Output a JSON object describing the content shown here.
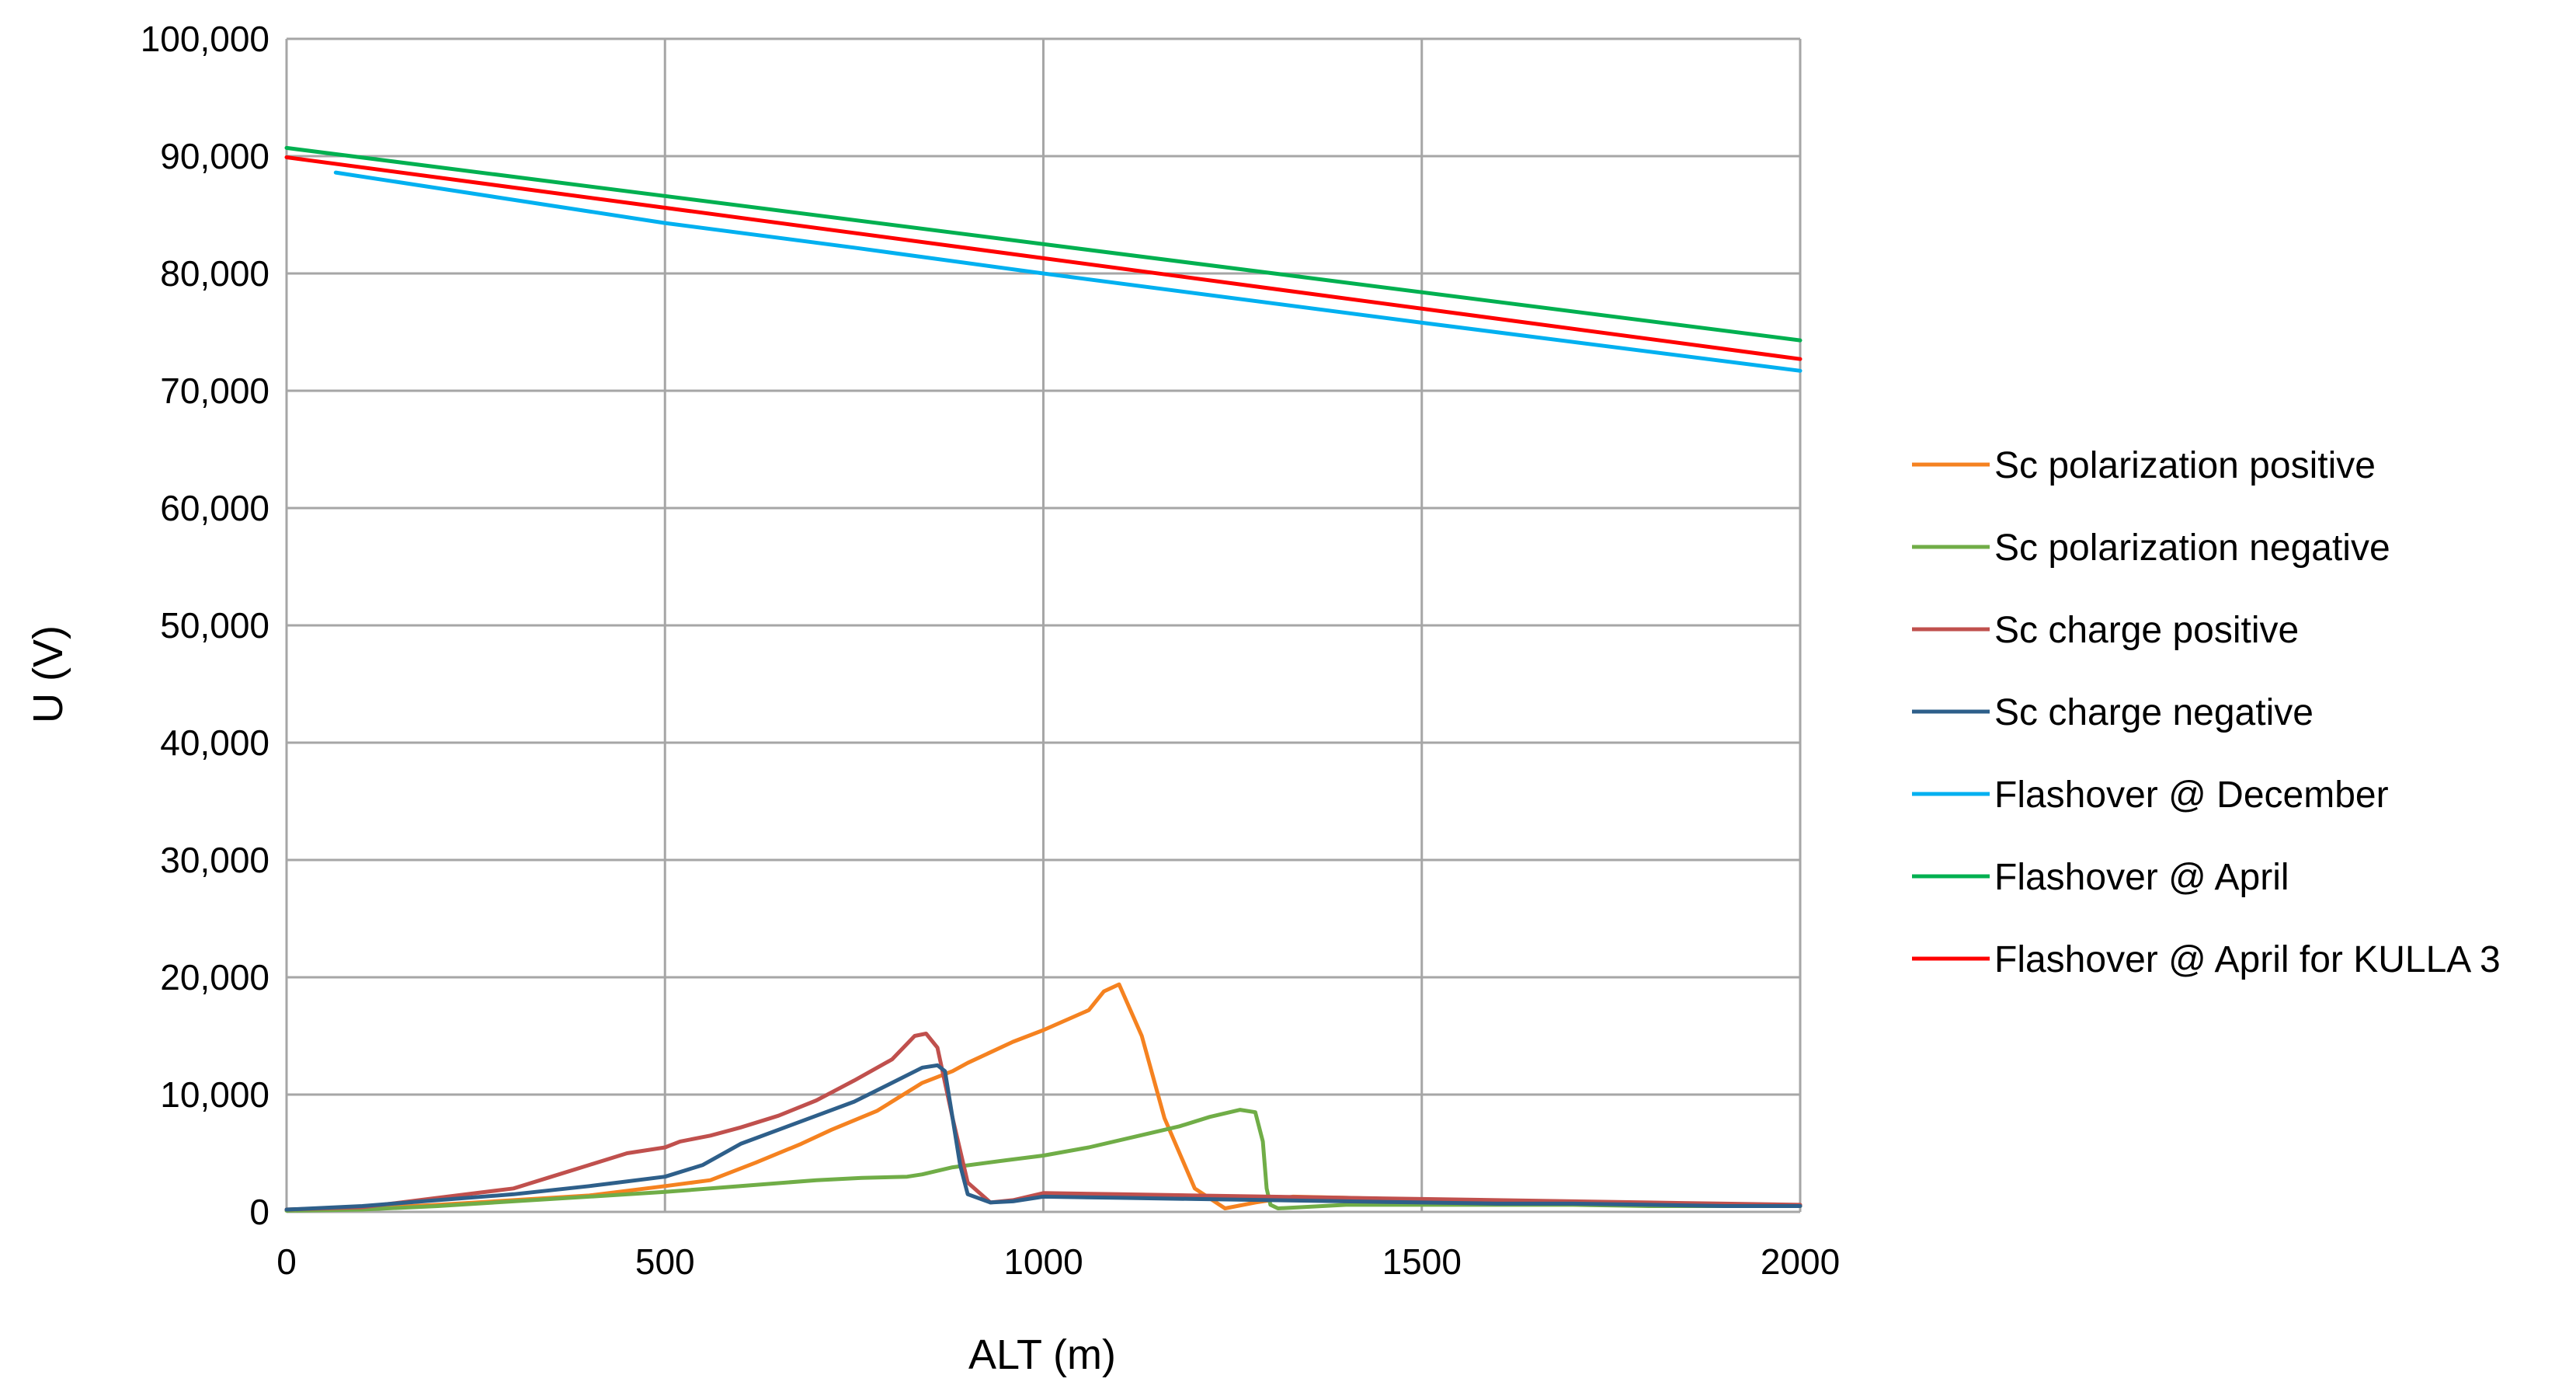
{
  "chart_data": {
    "type": "line",
    "title": "",
    "xlabel": "ALT (m)",
    "ylabel": "U (V)",
    "xlim": [
      0,
      2000
    ],
    "ylim": [
      0,
      100000
    ],
    "x_ticks": [
      0,
      500,
      1000,
      1500,
      2000
    ],
    "y_ticks": [
      0,
      10000,
      20000,
      30000,
      40000,
      50000,
      60000,
      70000,
      80000,
      90000,
      100000
    ],
    "x_tick_labels": [
      "0",
      "500",
      "1000",
      "1500",
      "2000"
    ],
    "y_tick_labels": [
      "0",
      "10,000",
      "20,000",
      "30,000",
      "40,000",
      "50,000",
      "60,000",
      "70,000",
      "80,000",
      "90,000",
      "100,000"
    ],
    "grid": true,
    "legend_position": "right",
    "series": [
      {
        "name": "Sc polarization positive",
        "color": "#f58220",
        "x": [
          0,
          100,
          200,
          300,
          400,
          500,
          560,
          620,
          680,
          720,
          780,
          840,
          880,
          900,
          960,
          1000,
          1060,
          1080,
          1100,
          1130,
          1160,
          1200,
          1240,
          1280,
          1330,
          1400,
          1500,
          1600,
          1700,
          1800,
          1900,
          2000
        ],
        "y": [
          200,
          300,
          600,
          1000,
          1400,
          2200,
          2700,
          4200,
          5800,
          7000,
          8600,
          11000,
          12000,
          12700,
          14500,
          15500,
          17200,
          18800,
          19400,
          15000,
          8000,
          2000,
          300,
          800,
          1300,
          1200,
          1000,
          900,
          800,
          700,
          600,
          500
        ]
      },
      {
        "name": "Sc polarization negative",
        "color": "#70ad47",
        "x": [
          0,
          100,
          200,
          300,
          400,
          500,
          600,
          700,
          760,
          820,
          840,
          880,
          950,
          1000,
          1060,
          1120,
          1180,
          1220,
          1260,
          1280,
          1290,
          1295,
          1300,
          1310,
          1340,
          1400,
          1500,
          1600,
          1700,
          1800,
          1900,
          2000
        ],
        "y": [
          100,
          200,
          500,
          900,
          1300,
          1700,
          2200,
          2700,
          2900,
          3000,
          3200,
          3800,
          4400,
          4800,
          5500,
          6400,
          7300,
          8100,
          8700,
          8500,
          6000,
          2000,
          600,
          300,
          400,
          600,
          600,
          600,
          600,
          500,
          500,
          500
        ]
      },
      {
        "name": "Sc charge positive",
        "color": "#c0504d",
        "x": [
          0,
          100,
          200,
          300,
          350,
          400,
          450,
          500,
          520,
          560,
          600,
          650,
          700,
          750,
          800,
          830,
          845,
          860,
          880,
          900,
          930,
          960,
          1000,
          1100,
          1200,
          1300,
          1400,
          1500,
          1600,
          1700,
          1800,
          1900,
          2000
        ],
        "y": [
          200,
          400,
          1200,
          2000,
          3000,
          4000,
          5000,
          5500,
          6000,
          6500,
          7200,
          8200,
          9500,
          11200,
          13000,
          15000,
          15200,
          14000,
          8000,
          2500,
          800,
          1000,
          1600,
          1500,
          1400,
          1300,
          1200,
          1100,
          1000,
          900,
          800,
          700,
          600
        ]
      },
      {
        "name": "Sc charge negative",
        "color": "#2e5f8a",
        "x": [
          0,
          100,
          200,
          300,
          400,
          500,
          550,
          600,
          650,
          700,
          750,
          800,
          840,
          860,
          870,
          880,
          890,
          900,
          930,
          960,
          1000,
          1100,
          1200,
          1300,
          1400,
          1500,
          1600,
          1700,
          1800,
          1900,
          2000
        ],
        "y": [
          200,
          500,
          1000,
          1500,
          2200,
          3000,
          4000,
          5800,
          7000,
          8200,
          9400,
          11000,
          12300,
          12500,
          12000,
          8000,
          4000,
          1500,
          800,
          900,
          1300,
          1200,
          1100,
          1000,
          900,
          800,
          700,
          700,
          600,
          500,
          500
        ]
      },
      {
        "name": "Flashover @ December",
        "color": "#00b0f0",
        "x": [
          65,
          500,
          750,
          1000,
          1500,
          2000
        ],
        "y": [
          88600,
          84300,
          82200,
          80000,
          75800,
          71700
        ]
      },
      {
        "name": "Flashover @ April",
        "color": "#00b050",
        "x": [
          0,
          2000
        ],
        "y": [
          90700,
          74300
        ]
      },
      {
        "name": "Flashover @ April for KULLA 3",
        "color": "#ff0000",
        "x": [
          0,
          2000
        ],
        "y": [
          89900,
          72700
        ]
      }
    ]
  }
}
